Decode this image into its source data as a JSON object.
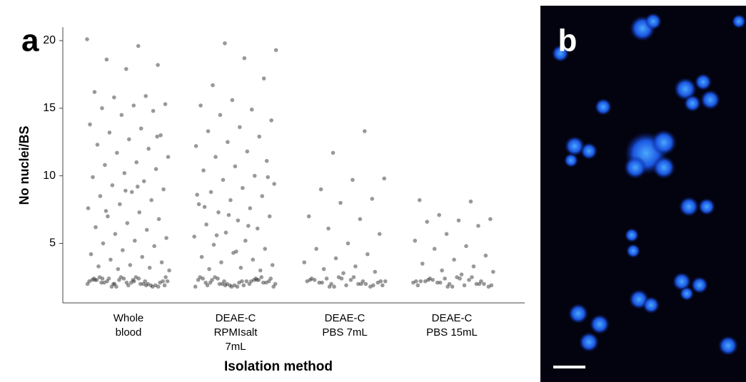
{
  "panel_labels": [
    "a",
    "b"
  ],
  "chart_data": {
    "type": "strip",
    "x_label": "Isolation method",
    "y_label": "No nuclei/BS",
    "categories": [
      [
        "Whole",
        "blood"
      ],
      [
        "DEAE-C",
        "RPMIsalt",
        "7mL"
      ],
      [
        "DEAE-C",
        "PBS 7mL"
      ],
      [
        "DEAE-C",
        "PBS 15mL"
      ]
    ],
    "color": "#333333",
    "ylim": [
      0.6,
      21
    ],
    "yticks": [
      5,
      10,
      15,
      20
    ],
    "series": [
      {
        "values": [
          20.1,
          19.6,
          18.6,
          18.2,
          17.9,
          16.2,
          15.9,
          15.8,
          15.3,
          15.2,
          15.0,
          14.8,
          14.5,
          13.8,
          13.5,
          13.2,
          13.0,
          12.7,
          12.3,
          12.0,
          11.7,
          11.4,
          11.0,
          10.8,
          10.5,
          10.2,
          9.9,
          9.6,
          9.3,
          9.0,
          8.8,
          8.5,
          8.2,
          7.9,
          7.6,
          7.3,
          7.0,
          6.8,
          6.5,
          6.2,
          6.0,
          5.7,
          5.4,
          5.2,
          5.0,
          4.8,
          4.5,
          4.2,
          4.0,
          3.8,
          3.6,
          3.4,
          3.3,
          3.2,
          3.1,
          3.0,
          9.2,
          7.4,
          12.9,
          8.9,
          2.4,
          2.2,
          2.0,
          1.9,
          2.3,
          2.1,
          1.8,
          2.5,
          2.2,
          2.0,
          2.4,
          2.1,
          1.9,
          2.3,
          2.0,
          1.8,
          2.2,
          2.5,
          2.1,
          1.9,
          2.4,
          2.3,
          2.0,
          1.8,
          2.2,
          2.1,
          2.5,
          1.9,
          2.3,
          2.0,
          2.4,
          2.2,
          1.8,
          2.1,
          2.3,
          1.9,
          2.0,
          2.5,
          2.2,
          2.4
        ]
      },
      {
        "values": [
          19.8,
          19.3,
          18.7,
          16.7,
          17.2,
          15.6,
          15.2,
          14.9,
          14.5,
          14.1,
          13.6,
          13.3,
          12.9,
          12.5,
          12.2,
          11.8,
          11.4,
          11.1,
          10.7,
          10.4,
          10.0,
          9.7,
          9.4,
          9.1,
          8.8,
          8.5,
          8.2,
          7.9,
          7.6,
          7.3,
          7.0,
          6.7,
          6.4,
          6.1,
          5.8,
          5.5,
          5.2,
          4.9,
          4.6,
          4.3,
          4.0,
          3.8,
          3.6,
          3.4,
          3.2,
          3.1,
          3.0,
          7.1,
          8.6,
          6.3,
          5.6,
          9.9,
          4.4,
          7.7,
          2.4,
          2.2,
          2.0,
          1.9,
          2.3,
          2.1,
          1.8,
          2.5,
          2.2,
          2.0,
          2.4,
          2.1,
          1.9,
          2.3,
          2.0,
          1.8,
          2.2,
          2.5,
          2.1,
          1.9,
          2.4,
          2.3,
          2.0,
          1.8,
          2.2,
          2.1,
          2.5,
          1.9,
          2.3,
          2.0,
          2.4,
          2.2,
          1.8,
          2.1,
          2.3,
          1.9
        ]
      },
      {
        "values": [
          13.3,
          11.7,
          9.8,
          9.7,
          9.0,
          8.3,
          8.0,
          7.0,
          6.8,
          6.1,
          5.7,
          5.0,
          4.6,
          4.2,
          3.9,
          3.6,
          3.3,
          3.1,
          2.9,
          2.8,
          2.4,
          2.2,
          2.0,
          1.9,
          2.3,
          2.1,
          1.8,
          2.5,
          2.2,
          2.0,
          2.4,
          2.1,
          1.9,
          2.3,
          2.0,
          1.8,
          2.2,
          2.5,
          2.1,
          1.9,
          2.4,
          2.3,
          2.0,
          1.8,
          2.2
        ]
      },
      {
        "values": [
          8.2,
          8.1,
          7.1,
          6.8,
          6.7,
          6.6,
          6.3,
          5.7,
          5.2,
          4.8,
          4.6,
          4.1,
          3.8,
          3.5,
          3.3,
          3.0,
          2.9,
          2.7,
          2.4,
          2.2,
          2.0,
          1.9,
          2.3,
          2.1,
          1.8,
          2.5,
          2.2,
          2.0,
          2.4,
          2.1,
          1.9,
          2.3,
          2.0,
          1.8,
          2.2,
          2.5,
          2.1,
          1.9,
          2.4,
          2.3,
          2.0,
          1.8,
          2.2
        ]
      }
    ]
  }
}
